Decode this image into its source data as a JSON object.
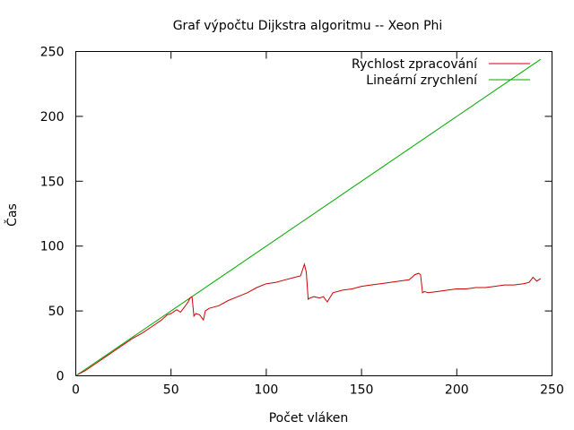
{
  "chart_data": {
    "type": "line",
    "title": "Graf výpočtu Dijkstra algoritmu -- Xeon Phi",
    "xlabel": "Počet vláken",
    "ylabel": "Čas",
    "xlim": [
      0,
      250
    ],
    "ylim": [
      0,
      250
    ],
    "xticks": [
      0,
      50,
      100,
      150,
      200,
      250
    ],
    "yticks": [
      0,
      50,
      100,
      150,
      200,
      250
    ],
    "xtick_labels": [
      "0",
      "50",
      "100",
      "150",
      "200",
      "250"
    ],
    "ytick_labels": [
      "0",
      "50",
      "100",
      "150",
      "200",
      "250"
    ],
    "grid": false,
    "legend_position": "top-right",
    "series": [
      {
        "name": "Rychlost zpracování",
        "color": "#cc0000",
        "x": [
          1,
          5,
          10,
          15,
          20,
          25,
          30,
          35,
          40,
          45,
          48,
          50,
          53,
          55,
          57,
          59,
          60,
          61,
          62,
          63,
          65,
          67,
          68,
          70,
          75,
          80,
          85,
          90,
          95,
          100,
          105,
          110,
          115,
          118,
          120,
          121,
          122,
          123,
          125,
          128,
          130,
          132,
          135,
          140,
          145,
          150,
          155,
          160,
          165,
          170,
          175,
          178,
          180,
          181,
          182,
          183,
          185,
          190,
          195,
          200,
          205,
          210,
          215,
          220,
          225,
          230,
          235,
          238,
          240,
          242,
          244
        ],
        "y": [
          1,
          4,
          9,
          14,
          19,
          24,
          29,
          33,
          38,
          43,
          47,
          48,
          51,
          49,
          53,
          57,
          60,
          61,
          46,
          48,
          47,
          43,
          50,
          52,
          54,
          58,
          61,
          64,
          68,
          71,
          72,
          74,
          76,
          77,
          86,
          80,
          59,
          60,
          61,
          60,
          61,
          57,
          64,
          66,
          67,
          69,
          70,
          71,
          72,
          73,
          74,
          78,
          79,
          78,
          64,
          65,
          64,
          65,
          66,
          67,
          67,
          68,
          68,
          69,
          70,
          70,
          71,
          72,
          76,
          73,
          75
        ]
      },
      {
        "name": "Lineární zrychlení",
        "color": "#00aa00",
        "x": [
          0,
          244
        ],
        "y": [
          0,
          244
        ]
      }
    ]
  }
}
